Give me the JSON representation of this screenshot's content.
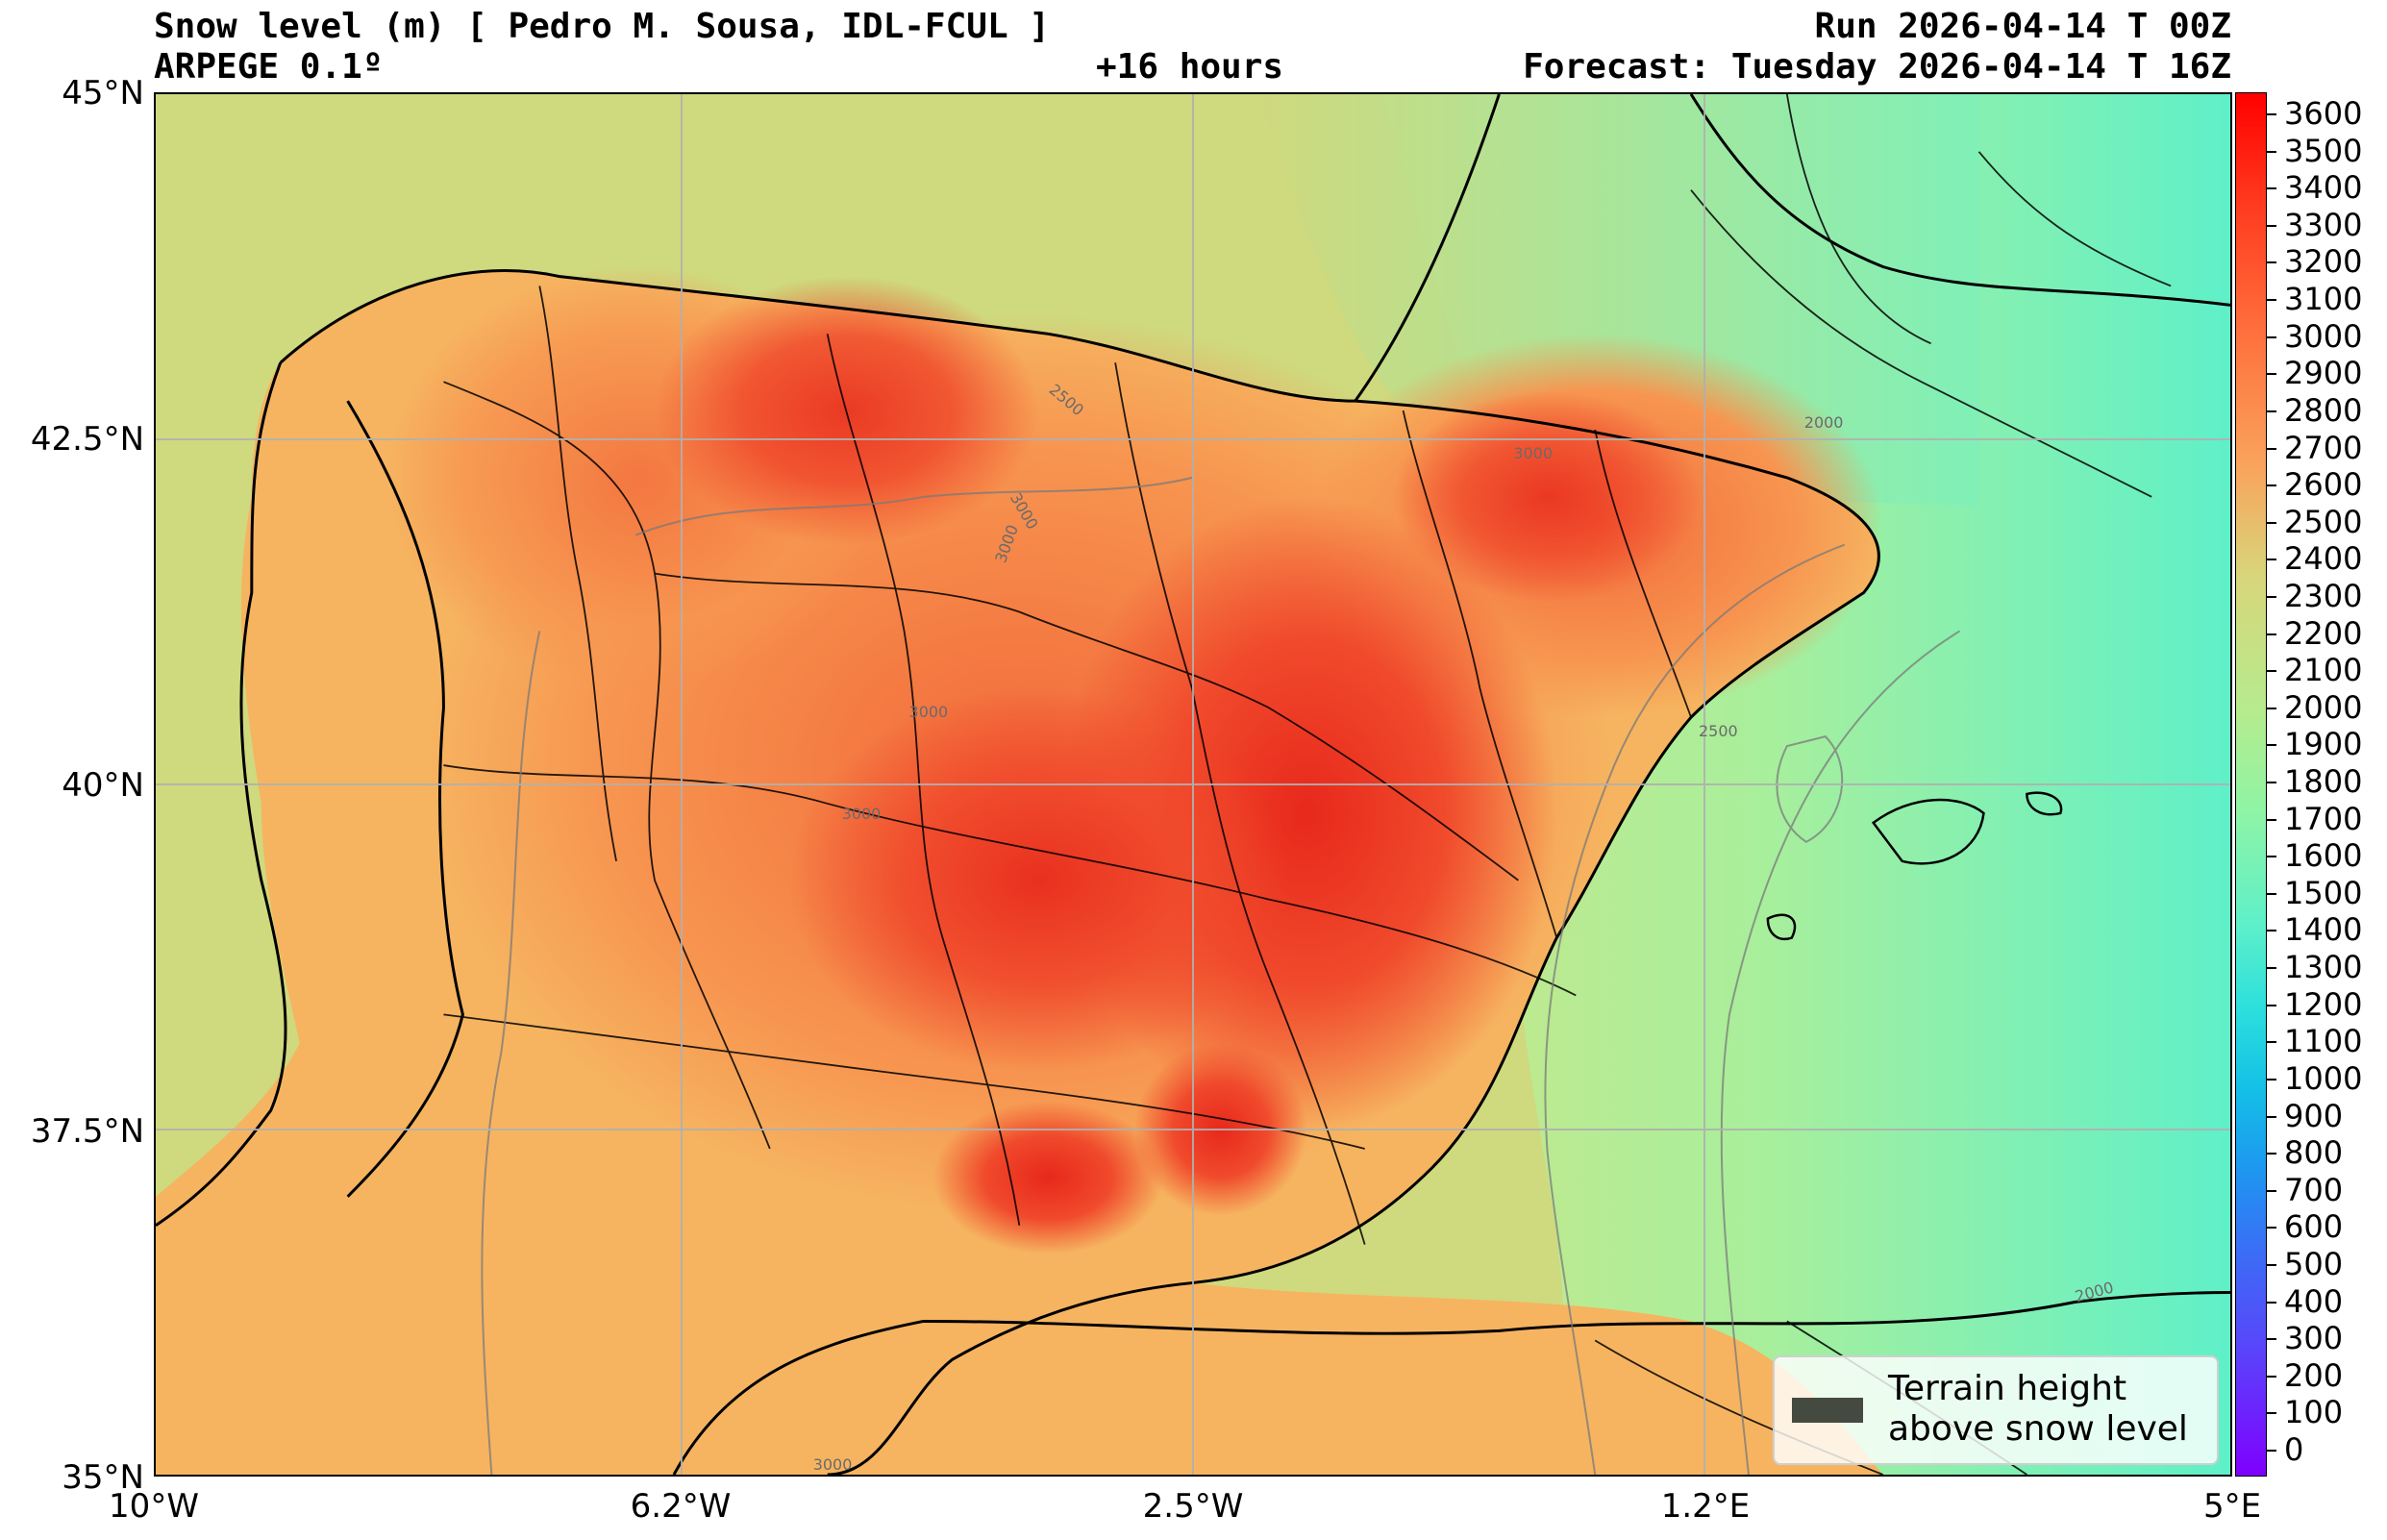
{
  "header": {
    "title_left": "Snow level (m) [ Pedro M. Sousa, IDL-FCUL ]",
    "subtitle_left": "ARPEGE 0.1º",
    "center": "+16 hours",
    "run": "Run 2026-04-14 T 00Z",
    "forecast": "Forecast: Tuesday 2026-04-14 T 16Z"
  },
  "map": {
    "extent": {
      "lon_min": -10,
      "lon_max": 5,
      "lat_min": 35,
      "lat_max": 45
    },
    "lat_ticks": [
      "45°N",
      "42.5°N",
      "40°N",
      "37.5°N",
      "35°N"
    ],
    "lon_ticks": [
      "10°W",
      "6.2°W",
      "2.5°W",
      "1.2°E",
      "5°E"
    ],
    "contour_labels": [
      "2500",
      "3000",
      "3000",
      "3000",
      "3000",
      "3000",
      "2000",
      "2500",
      "2000",
      "3000"
    ],
    "colors": {
      "sea_west": "#cfd97e",
      "land_low": "#f6b460",
      "land_mid": "#f79550",
      "land_high": "#f04a2c",
      "land_peak": "#e8281b",
      "north_cool": "#a8ef9c",
      "mediterranean": "#8ef0b0",
      "mediterranean_deep": "#5ff0c8",
      "grid": "#b0b0b0",
      "border": "#000000"
    }
  },
  "colorbar": {
    "ticks": [
      "3600",
      "3500",
      "3400",
      "3300",
      "3200",
      "3100",
      "3000",
      "2900",
      "2800",
      "2700",
      "2600",
      "2500",
      "2400",
      "2300",
      "2200",
      "2100",
      "2000",
      "1900",
      "1800",
      "1700",
      "1600",
      "1500",
      "1400",
      "1300",
      "1200",
      "1100",
      "1000",
      "900",
      "800",
      "700",
      "600",
      "500",
      "400",
      "300",
      "200",
      "100",
      "0"
    ],
    "top_color": "#ff0000",
    "bottom_color": "#7f00ff"
  },
  "legend": {
    "label": "Terrain height above snow level",
    "swatch_color": "#454a40"
  }
}
